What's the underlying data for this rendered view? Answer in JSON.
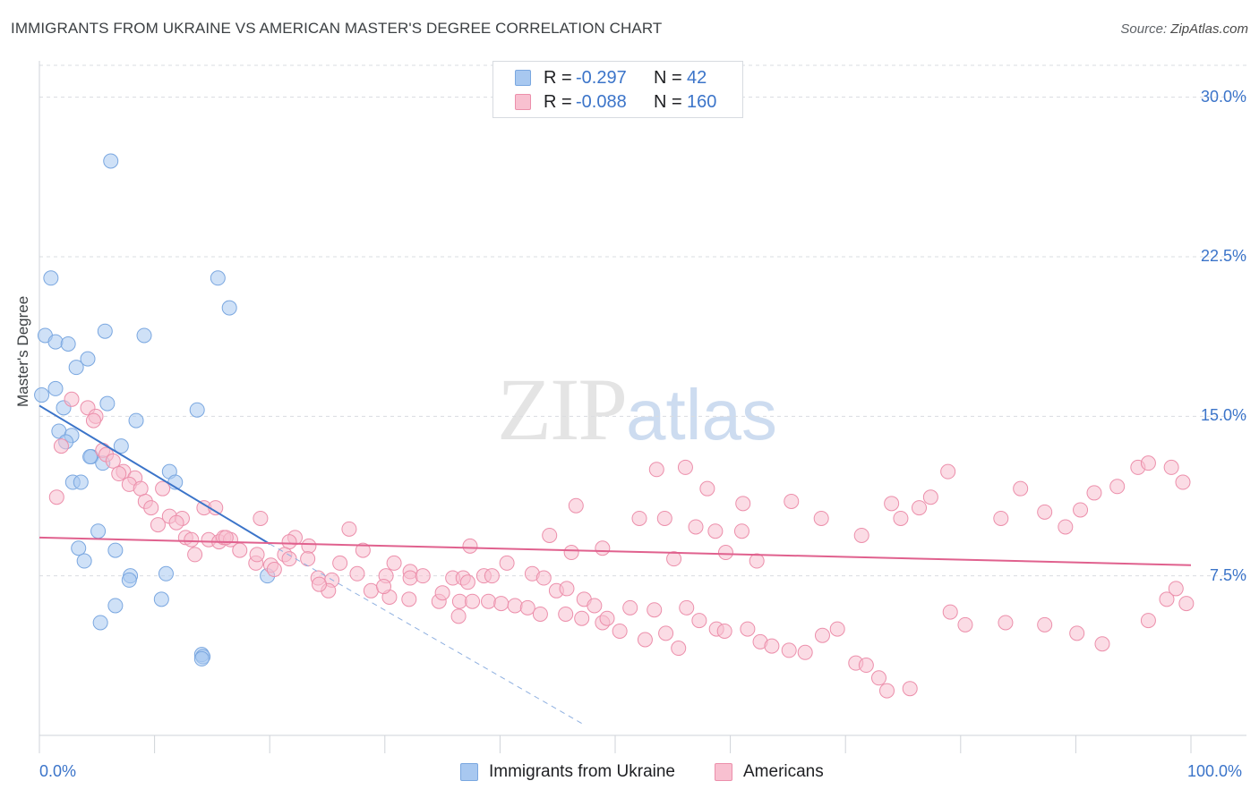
{
  "title": "IMMIGRANTS FROM UKRAINE VS AMERICAN MASTER'S DEGREE CORRELATION CHART",
  "source": {
    "prefix": "Source: ",
    "site": "ZipAtlas.com"
  },
  "watermark": {
    "zip": "ZIP",
    "atlas": "atlas"
  },
  "legend": {
    "rows": [
      {
        "r_label": "R =",
        "r_value": "-0.297",
        "n_label": "N =",
        "n_value": "42",
        "color": "#a8c8f0",
        "border": "#7aa7e0"
      },
      {
        "r_label": "R =",
        "r_value": "-0.088",
        "n_label": "N =",
        "n_value": "160",
        "color": "#f8c0d0",
        "border": "#ec8fab"
      }
    ]
  },
  "bottom_legend": [
    {
      "label": "Immigrants from Ukraine",
      "color": "#a8c8f0",
      "border": "#7aa7e0"
    },
    {
      "label": "Americans",
      "color": "#f8c0d0",
      "border": "#ec8fab"
    }
  ],
  "chart_data": {
    "type": "scatter",
    "title": "IMMIGRANTS FROM UKRAINE VS AMERICAN MASTER'S DEGREE CORRELATION CHART",
    "xlabel": "",
    "ylabel": "Master's Degree",
    "xlim": [
      0,
      100
    ],
    "ylim": [
      0,
      31.5
    ],
    "x_tick_labels": [
      "0.0%",
      "100.0%"
    ],
    "y_ticks": [
      7.5,
      15.0,
      22.5,
      30.0
    ],
    "y_tick_labels": [
      "7.5%",
      "15.0%",
      "22.5%",
      "30.0%"
    ],
    "grid": "horizontal dashed",
    "series": [
      {
        "name": "Immigrants from Ukraine",
        "color": "#7aa7e0",
        "fill": "#a8c8f0",
        "trend": {
          "x0": 0,
          "y0": 15.5,
          "x1": 20,
          "y1": 9.0,
          "dashed_to_x": 47.3,
          "dashed_to_y": 0.5
        },
        "points": [
          [
            6.2,
            27.0
          ],
          [
            1.0,
            21.5
          ],
          [
            15.5,
            21.5
          ],
          [
            16.5,
            20.1
          ],
          [
            0.5,
            18.8
          ],
          [
            5.7,
            19.0
          ],
          [
            9.1,
            18.8
          ],
          [
            1.4,
            18.5
          ],
          [
            2.5,
            18.4
          ],
          [
            4.2,
            17.7
          ],
          [
            3.2,
            17.3
          ],
          [
            0.2,
            16.0
          ],
          [
            1.4,
            16.3
          ],
          [
            5.9,
            15.6
          ],
          [
            13.7,
            15.3
          ],
          [
            2.1,
            15.4
          ],
          [
            8.4,
            14.8
          ],
          [
            1.7,
            14.3
          ],
          [
            2.8,
            14.1
          ],
          [
            2.3,
            13.8
          ],
          [
            7.1,
            13.6
          ],
          [
            4.5,
            13.1
          ],
          [
            4.4,
            13.1
          ],
          [
            5.5,
            12.8
          ],
          [
            11.3,
            12.4
          ],
          [
            11.8,
            11.9
          ],
          [
            2.9,
            11.9
          ],
          [
            3.6,
            11.9
          ],
          [
            5.1,
            9.6
          ],
          [
            3.4,
            8.8
          ],
          [
            6.6,
            8.7
          ],
          [
            3.9,
            8.2
          ],
          [
            19.8,
            7.5
          ],
          [
            7.9,
            7.5
          ],
          [
            7.8,
            7.3
          ],
          [
            11.0,
            7.6
          ],
          [
            10.6,
            6.4
          ],
          [
            6.6,
            6.1
          ],
          [
            5.3,
            5.3
          ],
          [
            14.1,
            3.8
          ],
          [
            14.2,
            3.7
          ],
          [
            14.1,
            3.6
          ]
        ]
      },
      {
        "name": "Americans",
        "color": "#ec8fab",
        "fill": "#f8c0d0",
        "trend": {
          "x0": 0,
          "y0": 9.3,
          "x1": 100,
          "y1": 8.0
        },
        "points": [
          [
            2.8,
            15.8
          ],
          [
            4.2,
            15.4
          ],
          [
            4.9,
            15.0
          ],
          [
            4.7,
            14.8
          ],
          [
            1.9,
            13.6
          ],
          [
            5.5,
            13.4
          ],
          [
            5.8,
            13.2
          ],
          [
            6.4,
            12.9
          ],
          [
            7.3,
            12.4
          ],
          [
            6.9,
            12.3
          ],
          [
            8.3,
            12.1
          ],
          [
            7.8,
            11.8
          ],
          [
            8.8,
            11.6
          ],
          [
            10.7,
            11.6
          ],
          [
            1.5,
            11.2
          ],
          [
            9.2,
            11.0
          ],
          [
            9.7,
            10.7
          ],
          [
            14.3,
            10.7
          ],
          [
            15.3,
            10.7
          ],
          [
            11.3,
            10.3
          ],
          [
            12.4,
            10.2
          ],
          [
            10.3,
            9.9
          ],
          [
            11.9,
            10.0
          ],
          [
            19.2,
            10.2
          ],
          [
            26.9,
            9.7
          ],
          [
            12.7,
            9.3
          ],
          [
            13.2,
            9.2
          ],
          [
            14.7,
            9.2
          ],
          [
            15.6,
            9.1
          ],
          [
            16.0,
            9.3
          ],
          [
            16.6,
            9.2
          ],
          [
            22.2,
            9.3
          ],
          [
            21.7,
            9.1
          ],
          [
            23.4,
            8.9
          ],
          [
            28.1,
            8.7
          ],
          [
            17.4,
            8.7
          ],
          [
            13.5,
            8.5
          ],
          [
            21.3,
            8.5
          ],
          [
            21.7,
            8.3
          ],
          [
            23.3,
            8.3
          ],
          [
            18.8,
            8.1
          ],
          [
            20.1,
            8.0
          ],
          [
            20.4,
            7.8
          ],
          [
            26.1,
            8.1
          ],
          [
            30.8,
            8.1
          ],
          [
            32.2,
            7.7
          ],
          [
            27.6,
            7.6
          ],
          [
            24.2,
            7.4
          ],
          [
            25.4,
            7.3
          ],
          [
            30.1,
            7.5
          ],
          [
            32.2,
            7.4
          ],
          [
            33.3,
            7.5
          ],
          [
            35.9,
            7.4
          ],
          [
            36.8,
            7.4
          ],
          [
            38.6,
            7.5
          ],
          [
            39.3,
            7.5
          ],
          [
            37.2,
            7.2
          ],
          [
            25.1,
            6.8
          ],
          [
            28.8,
            6.8
          ],
          [
            30.4,
            6.5
          ],
          [
            32.1,
            6.4
          ],
          [
            34.7,
            6.3
          ],
          [
            36.5,
            6.3
          ],
          [
            37.6,
            6.3
          ],
          [
            39.0,
            6.3
          ],
          [
            40.1,
            6.2
          ],
          [
            41.3,
            6.1
          ],
          [
            42.4,
            6.0
          ],
          [
            24.3,
            7.1
          ],
          [
            29.9,
            7.0
          ],
          [
            35.0,
            6.7
          ],
          [
            43.5,
            5.7
          ],
          [
            36.4,
            5.6
          ],
          [
            45.7,
            5.7
          ],
          [
            47.1,
            5.5
          ],
          [
            48.9,
            5.3
          ],
          [
            51.3,
            6.0
          ],
          [
            53.4,
            5.9
          ],
          [
            56.2,
            6.0
          ],
          [
            57.3,
            5.4
          ],
          [
            58.8,
            5.0
          ],
          [
            59.5,
            4.9
          ],
          [
            61.5,
            5.0
          ],
          [
            62.6,
            4.4
          ],
          [
            63.6,
            4.2
          ],
          [
            65.1,
            4.0
          ],
          [
            66.5,
            3.9
          ],
          [
            68.0,
            4.7
          ],
          [
            69.3,
            5.0
          ],
          [
            70.9,
            3.4
          ],
          [
            71.8,
            3.3
          ],
          [
            72.9,
            2.7
          ],
          [
            73.6,
            2.1
          ],
          [
            75.6,
            2.2
          ],
          [
            79.1,
            5.8
          ],
          [
            80.4,
            5.2
          ],
          [
            83.9,
            5.3
          ],
          [
            87.3,
            5.2
          ],
          [
            90.1,
            4.8
          ],
          [
            92.3,
            4.3
          ],
          [
            96.3,
            5.4
          ],
          [
            97.9,
            6.4
          ],
          [
            98.7,
            6.9
          ],
          [
            99.6,
            6.2
          ],
          [
            37.4,
            8.9
          ],
          [
            40.6,
            8.1
          ],
          [
            42.8,
            7.6
          ],
          [
            43.8,
            7.4
          ],
          [
            44.9,
            6.8
          ],
          [
            45.8,
            6.9
          ],
          [
            47.3,
            6.4
          ],
          [
            48.2,
            6.1
          ],
          [
            49.3,
            5.5
          ],
          [
            50.4,
            4.9
          ],
          [
            52.6,
            4.5
          ],
          [
            54.4,
            4.8
          ],
          [
            55.5,
            4.1
          ],
          [
            44.3,
            9.4
          ],
          [
            46.2,
            8.6
          ],
          [
            48.9,
            8.8
          ],
          [
            52.1,
            10.2
          ],
          [
            54.3,
            10.2
          ],
          [
            55.1,
            8.3
          ],
          [
            57.0,
            9.8
          ],
          [
            58.7,
            9.6
          ],
          [
            59.6,
            8.6
          ],
          [
            61.0,
            9.6
          ],
          [
            62.3,
            8.2
          ],
          [
            46.6,
            10.8
          ],
          [
            53.6,
            12.5
          ],
          [
            56.1,
            12.6
          ],
          [
            58.0,
            11.6
          ],
          [
            61.1,
            10.9
          ],
          [
            65.3,
            11.0
          ],
          [
            67.9,
            10.2
          ],
          [
            71.4,
            9.4
          ],
          [
            74.0,
            10.9
          ],
          [
            74.8,
            10.2
          ],
          [
            76.4,
            10.7
          ],
          [
            77.4,
            11.2
          ],
          [
            78.9,
            12.4
          ],
          [
            83.5,
            10.2
          ],
          [
            85.2,
            11.6
          ],
          [
            87.3,
            10.5
          ],
          [
            89.1,
            9.8
          ],
          [
            90.4,
            10.6
          ],
          [
            91.6,
            11.4
          ],
          [
            93.6,
            11.7
          ],
          [
            95.4,
            12.6
          ],
          [
            96.3,
            12.8
          ],
          [
            98.3,
            12.6
          ],
          [
            99.3,
            11.9
          ],
          [
            16.2,
            9.3
          ],
          [
            18.9,
            8.5
          ]
        ]
      }
    ]
  }
}
